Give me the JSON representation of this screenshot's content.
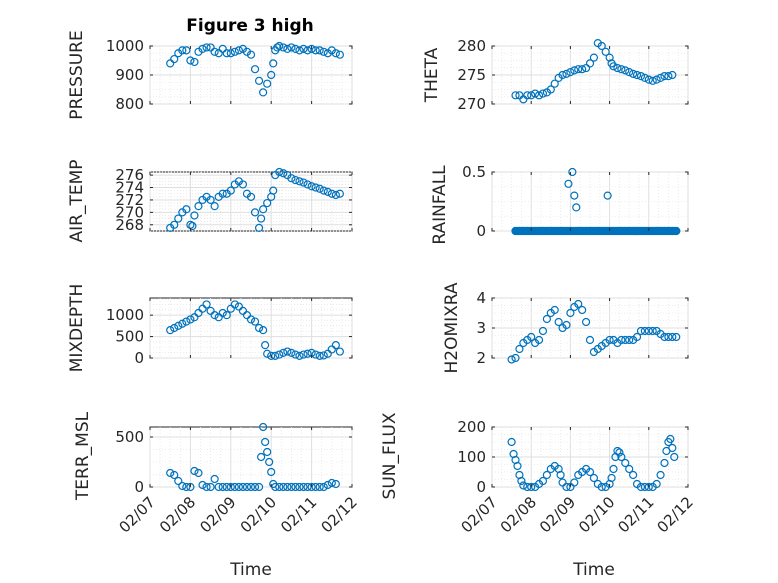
{
  "figure": {
    "title": "Figure 3 high",
    "marker_color": "#0072BD",
    "x_tick_labels": [
      "02/07",
      "02/08",
      "02/09",
      "02/10",
      "02/11",
      "02/12"
    ],
    "x_label": "Time"
  },
  "chart_data": [
    {
      "type": "scatter",
      "ylabel": "PRESSURE",
      "ylim": [
        800,
        1000
      ],
      "yticks": [
        800,
        900,
        1000
      ],
      "xlim": [
        0,
        5
      ],
      "grid": true,
      "x": [
        0.5,
        0.6,
        0.7,
        0.8,
        0.9,
        1.0,
        1.1,
        1.2,
        1.3,
        1.4,
        1.5,
        1.6,
        1.7,
        1.8,
        1.9,
        2.0,
        2.1,
        2.2,
        2.3,
        2.4,
        2.5,
        2.6,
        2.7,
        2.8,
        2.9,
        3.0,
        3.05,
        3.1,
        3.15,
        3.2,
        3.3,
        3.4,
        3.5,
        3.6,
        3.7,
        3.8,
        3.9,
        4.0,
        4.1,
        4.2,
        4.3,
        4.4,
        4.5,
        4.6,
        4.7
      ],
      "y": [
        940,
        955,
        975,
        985,
        985,
        950,
        945,
        980,
        990,
        995,
        995,
        980,
        975,
        990,
        975,
        975,
        980,
        985,
        990,
        980,
        970,
        920,
        880,
        840,
        870,
        900,
        940,
        985,
        995,
        1000,
        995,
        990,
        995,
        990,
        985,
        990,
        985,
        990,
        985,
        985,
        980,
        975,
        985,
        975,
        970
      ]
    },
    {
      "type": "scatter",
      "ylabel": "THETA",
      "ylim": [
        270,
        280
      ],
      "yticks": [
        270,
        275,
        280
      ],
      "xlim": [
        0,
        5
      ],
      "grid": true,
      "x": [
        0.6,
        0.7,
        0.8,
        0.9,
        1.0,
        1.1,
        1.2,
        1.3,
        1.4,
        1.5,
        1.6,
        1.7,
        1.8,
        1.9,
        2.0,
        2.1,
        2.2,
        2.3,
        2.4,
        2.5,
        2.6,
        2.7,
        2.8,
        2.9,
        3.0,
        3.05,
        3.1,
        3.2,
        3.3,
        3.4,
        3.5,
        3.6,
        3.7,
        3.8,
        3.9,
        4.0,
        4.1,
        4.2,
        4.3,
        4.4,
        4.5,
        4.6
      ],
      "y": [
        271.5,
        271.5,
        270.8,
        271.5,
        271.5,
        271.8,
        271.5,
        271.8,
        272.0,
        272.5,
        273.5,
        274.5,
        275.0,
        275.2,
        275.5,
        275.8,
        276.0,
        276.0,
        276.2,
        277.0,
        278.0,
        280.5,
        280.0,
        279.0,
        278.0,
        277.0,
        276.5,
        276.2,
        276.0,
        275.8,
        275.5,
        275.2,
        275.0,
        274.8,
        274.5,
        274.2,
        274.0,
        274.2,
        274.5,
        274.8,
        274.8,
        275.0
      ]
    },
    {
      "type": "scatter",
      "ylabel": "AIR_TEMP",
      "ylim": [
        267,
        276.5
      ],
      "yticks": [
        268,
        270,
        272,
        274,
        276
      ],
      "xlim": [
        0,
        5
      ],
      "grid": true,
      "x": [
        0.5,
        0.6,
        0.7,
        0.8,
        0.9,
        1.0,
        1.05,
        1.1,
        1.2,
        1.3,
        1.4,
        1.5,
        1.6,
        1.7,
        1.8,
        1.9,
        2.0,
        2.1,
        2.2,
        2.3,
        2.4,
        2.5,
        2.6,
        2.7,
        2.75,
        2.8,
        2.9,
        3.0,
        3.05,
        3.1,
        3.2,
        3.3,
        3.4,
        3.5,
        3.6,
        3.7,
        3.8,
        3.9,
        4.0,
        4.1,
        4.2,
        4.3,
        4.4,
        4.5,
        4.6,
        4.7
      ],
      "y": [
        267.5,
        268.0,
        269.0,
        270.0,
        270.5,
        268.0,
        267.8,
        269.5,
        271.0,
        272.0,
        272.5,
        272.0,
        271.0,
        272.5,
        273.0,
        273.0,
        273.5,
        274.5,
        275.0,
        274.5,
        273.0,
        272.5,
        270.0,
        267.5,
        269.0,
        270.5,
        271.5,
        272.5,
        273.5,
        276.0,
        276.5,
        276.3,
        276.0,
        275.5,
        275.2,
        275.0,
        274.8,
        274.5,
        274.2,
        274.0,
        273.8,
        273.5,
        273.3,
        273.0,
        272.8,
        273.0
      ]
    },
    {
      "type": "scatter",
      "ylabel": "RAINFALL",
      "ylim": [
        0,
        0.5
      ],
      "yticks": [
        0,
        0.5
      ],
      "xlim": [
        0,
        5
      ],
      "grid": true,
      "x": [
        0.6,
        0.7,
        0.8,
        0.9,
        1.0,
        1.1,
        1.2,
        1.3,
        1.4,
        1.5,
        1.6,
        1.7,
        1.8,
        1.9,
        1.95,
        2.0,
        2.05,
        2.1,
        2.15,
        2.2,
        2.3,
        2.4,
        2.5,
        2.6,
        2.7,
        2.8,
        2.9,
        2.95,
        3.0,
        3.1,
        3.2,
        3.3,
        3.4,
        3.5,
        3.6,
        3.7,
        3.8,
        3.9,
        4.0,
        4.1,
        4.2,
        4.3,
        4.4,
        4.5,
        4.6,
        4.7
      ],
      "y": [
        0,
        0,
        0,
        0,
        0,
        0,
        0,
        0,
        0,
        0,
        0,
        0,
        0,
        0,
        0.4,
        0,
        0.5,
        0.3,
        0.2,
        0,
        0,
        0,
        0,
        0,
        0,
        0,
        0,
        0.3,
        0,
        0,
        0,
        0,
        0,
        0,
        0,
        0,
        0,
        0,
        0,
        0,
        0,
        0,
        0,
        0,
        0,
        0
      ]
    },
    {
      "type": "scatter",
      "ylabel": "MIXDEPTH",
      "ylim": [
        0,
        1400
      ],
      "yticks": [
        0,
        500,
        1000
      ],
      "xlim": [
        0,
        5
      ],
      "grid": true,
      "x": [
        0.5,
        0.6,
        0.7,
        0.8,
        0.9,
        1.0,
        1.1,
        1.2,
        1.3,
        1.4,
        1.5,
        1.6,
        1.7,
        1.8,
        1.9,
        2.0,
        2.1,
        2.2,
        2.3,
        2.4,
        2.5,
        2.6,
        2.7,
        2.8,
        2.85,
        2.9,
        3.0,
        3.1,
        3.2,
        3.3,
        3.4,
        3.5,
        3.6,
        3.7,
        3.8,
        3.9,
        4.0,
        4.1,
        4.2,
        4.3,
        4.4,
        4.5,
        4.6,
        4.7
      ],
      "y": [
        650,
        700,
        750,
        800,
        850,
        900,
        950,
        1050,
        1150,
        1250,
        1100,
        1000,
        950,
        1050,
        1000,
        1150,
        1250,
        1200,
        1100,
        1000,
        900,
        850,
        700,
        650,
        300,
        100,
        50,
        50,
        80,
        120,
        150,
        120,
        80,
        50,
        80,
        100,
        120,
        80,
        50,
        60,
        100,
        200,
        300,
        150
      ]
    },
    {
      "type": "scatter",
      "ylabel": "H2OMIXRA",
      "ylim": [
        2,
        4
      ],
      "yticks": [
        2,
        3,
        4
      ],
      "xlim": [
        0,
        5
      ],
      "grid": true,
      "x": [
        0.5,
        0.6,
        0.7,
        0.8,
        0.9,
        1.0,
        1.1,
        1.2,
        1.3,
        1.4,
        1.5,
        1.6,
        1.7,
        1.8,
        1.9,
        2.0,
        2.1,
        2.2,
        2.3,
        2.4,
        2.5,
        2.6,
        2.7,
        2.8,
        2.9,
        3.0,
        3.1,
        3.2,
        3.3,
        3.4,
        3.5,
        3.6,
        3.7,
        3.8,
        3.9,
        4.0,
        4.1,
        4.2,
        4.3,
        4.4,
        4.5,
        4.6,
        4.7
      ],
      "y": [
        1.95,
        2.0,
        2.3,
        2.5,
        2.6,
        2.7,
        2.5,
        2.6,
        2.9,
        3.3,
        3.5,
        3.6,
        3.2,
        3.0,
        3.1,
        3.5,
        3.7,
        3.8,
        3.6,
        3.2,
        2.6,
        2.2,
        2.3,
        2.4,
        2.5,
        2.6,
        2.6,
        2.5,
        2.6,
        2.6,
        2.6,
        2.6,
        2.7,
        2.9,
        2.9,
        2.9,
        2.9,
        2.9,
        2.8,
        2.7,
        2.7,
        2.7,
        2.7
      ]
    },
    {
      "type": "scatter",
      "ylabel": "TERR_MSL",
      "ylim": [
        0,
        600
      ],
      "yticks": [
        0,
        500
      ],
      "xlim": [
        0,
        5
      ],
      "grid": true,
      "x": [
        0.5,
        0.6,
        0.7,
        0.8,
        0.9,
        1.0,
        1.1,
        1.2,
        1.3,
        1.4,
        1.5,
        1.6,
        1.7,
        1.8,
        1.9,
        2.0,
        2.1,
        2.2,
        2.3,
        2.4,
        2.5,
        2.6,
        2.7,
        2.75,
        2.8,
        2.85,
        2.9,
        2.95,
        3.0,
        3.05,
        3.1,
        3.2,
        3.3,
        3.4,
        3.5,
        3.6,
        3.7,
        3.8,
        3.9,
        4.0,
        4.1,
        4.2,
        4.3,
        4.4,
        4.5,
        4.6
      ],
      "y": [
        140,
        120,
        60,
        10,
        0,
        0,
        160,
        140,
        20,
        0,
        0,
        80,
        0,
        0,
        0,
        0,
        0,
        0,
        0,
        0,
        0,
        0,
        0,
        300,
        600,
        450,
        350,
        250,
        150,
        30,
        0,
        0,
        0,
        0,
        0,
        0,
        0,
        0,
        0,
        0,
        0,
        0,
        0,
        20,
        40,
        30
      ]
    },
    {
      "type": "scatter",
      "ylabel": "SUN_FLUX",
      "ylim": [
        0,
        200
      ],
      "yticks": [
        0,
        100,
        200
      ],
      "xlim": [
        0,
        5
      ],
      "grid": true,
      "x": [
        0.5,
        0.55,
        0.6,
        0.65,
        0.7,
        0.75,
        0.8,
        0.9,
        1.0,
        1.1,
        1.2,
        1.3,
        1.4,
        1.5,
        1.6,
        1.7,
        1.75,
        1.8,
        1.9,
        2.0,
        2.1,
        2.2,
        2.3,
        2.4,
        2.5,
        2.6,
        2.7,
        2.8,
        2.9,
        3.0,
        3.05,
        3.1,
        3.15,
        3.2,
        3.25,
        3.3,
        3.4,
        3.5,
        3.6,
        3.7,
        3.8,
        3.9,
        4.0,
        4.1,
        4.2,
        4.3,
        4.4,
        4.45,
        4.5,
        4.55,
        4.6,
        4.65
      ],
      "y": [
        150,
        110,
        90,
        70,
        40,
        20,
        5,
        0,
        0,
        0,
        10,
        20,
        40,
        60,
        70,
        60,
        40,
        15,
        0,
        0,
        15,
        40,
        50,
        60,
        50,
        30,
        10,
        0,
        0,
        10,
        30,
        60,
        100,
        120,
        115,
        100,
        80,
        60,
        40,
        10,
        0,
        0,
        0,
        0,
        10,
        40,
        80,
        120,
        150,
        160,
        130,
        100
      ]
    }
  ]
}
